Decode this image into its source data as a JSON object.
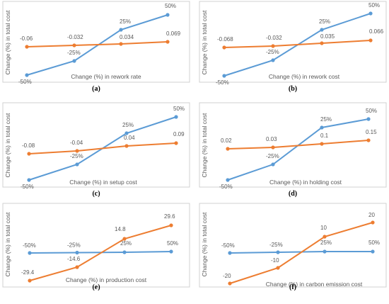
{
  "colors": {
    "blue": "#5b9bd5",
    "orange": "#ed7d31",
    "frame": "#d0d0d0",
    "text": "#595959"
  },
  "chart_data": [
    {
      "type": "line",
      "caption": "(a)",
      "ylabel": "Change (%) in total cost",
      "xlabel": "Change (%) in rework rate",
      "series": [
        {
          "values": [
            -50,
            -25,
            25,
            50
          ],
          "labels": [
            "-50%",
            "-25%",
            "25%",
            "50%"
          ]
        },
        {
          "values": [
            -0.06,
            -0.032,
            0.034,
            0.069
          ],
          "labels": [
            "-0.06",
            "-0.032",
            "0.034",
            "0.069"
          ]
        }
      ]
    },
    {
      "type": "line",
      "caption": "(b)",
      "ylabel": "Change (%) in total cost",
      "xlabel": "Change (%) in rework cost",
      "series": [
        {
          "values": [
            -50,
            -25,
            25,
            50
          ],
          "labels": [
            "-50%",
            "-25%",
            "25%",
            "50%"
          ]
        },
        {
          "values": [
            -0.068,
            -0.032,
            0.035,
            0.066
          ],
          "labels": [
            "-0.068",
            "-0.032",
            "0.035",
            "0.066"
          ]
        }
      ]
    },
    {
      "type": "line",
      "caption": "(c)",
      "ylabel": "Change (%) in total cost",
      "xlabel": "Change (%) in setup cost",
      "series": [
        {
          "values": [
            -50,
            -25,
            25,
            50
          ],
          "labels": [
            "-50%",
            "-25%",
            "25%",
            "50%"
          ]
        },
        {
          "values": [
            -0.08,
            -0.04,
            0.04,
            0.09
          ],
          "labels": [
            "-0.08",
            "-0.04",
            "0.04",
            "0.09"
          ]
        }
      ]
    },
    {
      "type": "line",
      "caption": "(d)",
      "ylabel": "Change (%) in total cost",
      "xlabel": "Change (%) in holding cost",
      "series": [
        {
          "values": [
            -50,
            -25,
            25,
            50
          ],
          "labels": [
            "-50%",
            "-25%",
            "25%",
            "50%"
          ]
        },
        {
          "values": [
            0.02,
            0.03,
            0.1,
            0.15
          ],
          "labels": [
            "0.02",
            "0.03",
            "0.1",
            "0.15"
          ]
        }
      ]
    },
    {
      "type": "line",
      "caption": "(e)",
      "ylabel": "Change (%) in total cost",
      "xlabel": "Change (%) in production cost",
      "series": [
        {
          "values": [
            -50,
            -25,
            25,
            50
          ],
          "labels": [
            "-50%",
            "-25%",
            "25%",
            "50%"
          ]
        },
        {
          "values": [
            -29.4,
            -14.6,
            14.8,
            29.6
          ],
          "labels": [
            "-29.4",
            "-14.6",
            "14.8",
            "29.6"
          ]
        }
      ]
    },
    {
      "type": "line",
      "caption": "(f)",
      "ylabel": "Change (%) in total cost",
      "xlabel": "Change (%) in carbon emission cost",
      "series": [
        {
          "values": [
            -50,
            -25,
            25,
            50
          ],
          "labels": [
            "-50%",
            "-25%",
            "25%",
            "50%"
          ]
        },
        {
          "values": [
            -20,
            -10,
            10,
            20
          ],
          "labels": [
            "-20",
            "-10",
            "10",
            "20"
          ]
        }
      ]
    }
  ]
}
